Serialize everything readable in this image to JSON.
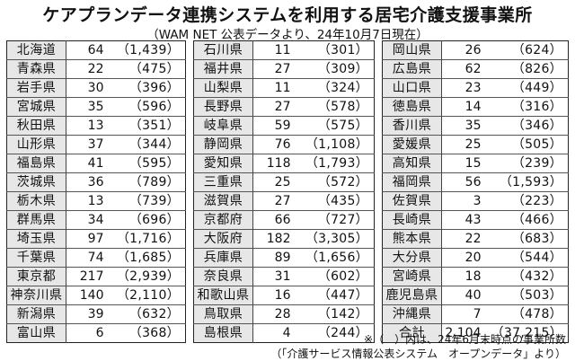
{
  "title": "ケアプランデータ連携システムを利用する居宅介護支援事業所",
  "subtitle": "（WAM NET 公表データより、24年10月7日現在）",
  "columns": [
    [
      {
        "pref": "北海道",
        "count": "64",
        "paren": "（1,439）"
      },
      {
        "pref": "青森県",
        "count": "22",
        "paren": "（475）"
      },
      {
        "pref": "岩手県",
        "count": "30",
        "paren": "（396）"
      },
      {
        "pref": "宮城県",
        "count": "35",
        "paren": "（596）"
      },
      {
        "pref": "秋田県",
        "count": "13",
        "paren": "（351）"
      },
      {
        "pref": "山形県",
        "count": "37",
        "paren": "（344）"
      },
      {
        "pref": "福島県",
        "count": "41",
        "paren": "（595）"
      },
      {
        "pref": "茨城県",
        "count": "36",
        "paren": "（789）"
      },
      {
        "pref": "栃木県",
        "count": "13",
        "paren": "（739）"
      },
      {
        "pref": "群馬県",
        "count": "34",
        "paren": "（696）"
      },
      {
        "pref": "埼玉県",
        "count": "97",
        "paren": "（1,716）"
      },
      {
        "pref": "千葉県",
        "count": "74",
        "paren": "（1,685）"
      },
      {
        "pref": "東京都",
        "count": "217",
        "paren": "（2,939）"
      },
      {
        "pref": "神奈川県",
        "count": "140",
        "paren": "（2,110）"
      },
      {
        "pref": "新潟県",
        "count": "39",
        "paren": "（632）"
      },
      {
        "pref": "富山県",
        "count": "6",
        "paren": "（368）"
      }
    ],
    [
      {
        "pref": "石川県",
        "count": "11",
        "paren": "（301）"
      },
      {
        "pref": "福井県",
        "count": "27",
        "paren": "（309）"
      },
      {
        "pref": "山梨県",
        "count": "11",
        "paren": "（324）"
      },
      {
        "pref": "長野県",
        "count": "27",
        "paren": "（578）"
      },
      {
        "pref": "岐阜県",
        "count": "59",
        "paren": "（575）"
      },
      {
        "pref": "静岡県",
        "count": "76",
        "paren": "（1,108）"
      },
      {
        "pref": "愛知県",
        "count": "118",
        "paren": "（1,793）"
      },
      {
        "pref": "三重県",
        "count": "25",
        "paren": "（572）"
      },
      {
        "pref": "滋賀県",
        "count": "27",
        "paren": "（435）"
      },
      {
        "pref": "京都府",
        "count": "66",
        "paren": "（727）"
      },
      {
        "pref": "大阪府",
        "count": "182",
        "paren": "（3,305）"
      },
      {
        "pref": "兵庫県",
        "count": "89",
        "paren": "（1,656）"
      },
      {
        "pref": "奈良県",
        "count": "31",
        "paren": "（602）"
      },
      {
        "pref": "和歌山県",
        "count": "16",
        "paren": "（447）"
      },
      {
        "pref": "鳥取県",
        "count": "28",
        "paren": "（142）"
      },
      {
        "pref": "島根県",
        "count": "4",
        "paren": "（244）"
      }
    ],
    [
      {
        "pref": "岡山県",
        "count": "26",
        "paren": "（624）"
      },
      {
        "pref": "広島県",
        "count": "62",
        "paren": "（826）"
      },
      {
        "pref": "山口県",
        "count": "23",
        "paren": "（449）"
      },
      {
        "pref": "徳島県",
        "count": "14",
        "paren": "（316）"
      },
      {
        "pref": "香川県",
        "count": "35",
        "paren": "（346）"
      },
      {
        "pref": "愛媛県",
        "count": "25",
        "paren": "（505）"
      },
      {
        "pref": "高知県",
        "count": "15",
        "paren": "（239）"
      },
      {
        "pref": "福岡県",
        "count": "56",
        "paren": "（1,593）"
      },
      {
        "pref": "佐賀県",
        "count": "3",
        "paren": "（223）"
      },
      {
        "pref": "長崎県",
        "count": "43",
        "paren": "（466）"
      },
      {
        "pref": "熊本県",
        "count": "22",
        "paren": "（683）"
      },
      {
        "pref": "大分県",
        "count": "20",
        "paren": "（544）"
      },
      {
        "pref": "宮崎県",
        "count": "18",
        "paren": "（432）"
      },
      {
        "pref": "鹿児島県",
        "count": "40",
        "paren": "（503）"
      },
      {
        "pref": "沖縄県",
        "count": "7",
        "paren": "（478）"
      },
      {
        "pref": "合計",
        "count": "2,104",
        "paren": "（37,215）"
      }
    ]
  ],
  "notes": {
    "line1": "※（　）内は、24年6月末時点の事業所数",
    "line2": "（「介護サービス情報公表システム　オープンデータ」より）"
  }
}
